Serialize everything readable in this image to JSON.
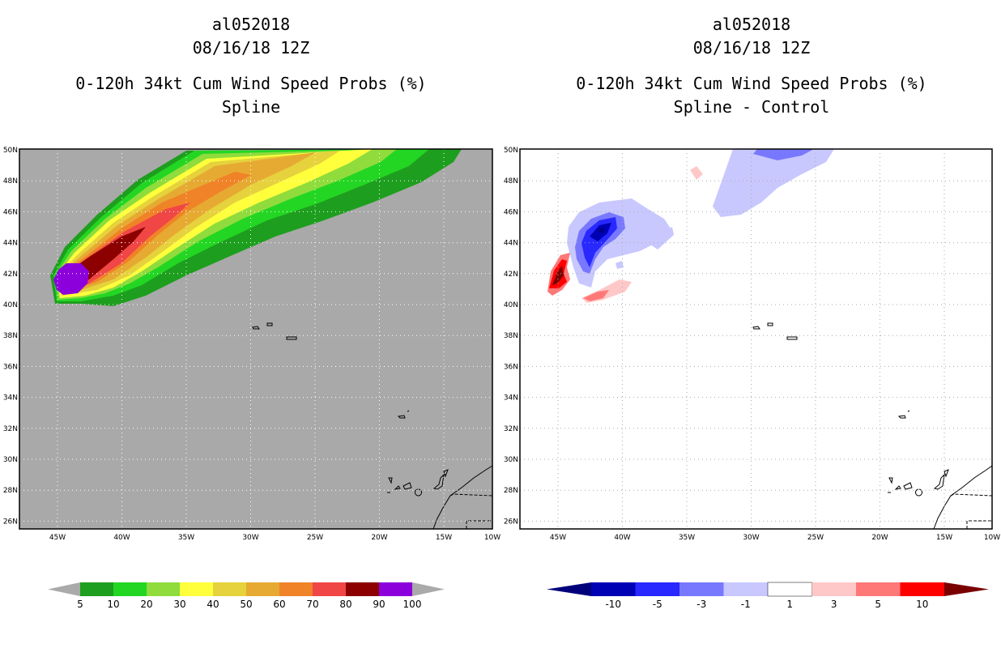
{
  "left_panel": {
    "title_lines": [
      "al052018",
      "08/16/18 12Z",
      "0-120h 34kt Cum Wind Speed Probs (%)",
      "Spline"
    ]
  },
  "right_panel": {
    "title_lines": [
      "al052018",
      "08/16/18 12Z",
      "0-120h 34kt Cum Wind Speed Probs (%)",
      "Spline - Control"
    ]
  },
  "axes": {
    "lat_labels": [
      "50N",
      "48N",
      "46N",
      "44N",
      "42N",
      "40N",
      "38N",
      "36N",
      "34N",
      "32N",
      "30N",
      "28N",
      "26N"
    ],
    "lon_labels": [
      "45W",
      "40W",
      "35W",
      "30W",
      "25W",
      "20W",
      "15W",
      "10W"
    ]
  },
  "left_colorbar": {
    "labels": [
      "5",
      "10",
      "20",
      "30",
      "40",
      "50",
      "60",
      "70",
      "80",
      "90",
      "100"
    ],
    "colors": [
      "#1e9e1e",
      "#23d623",
      "#8fdc3c",
      "#ffff3c",
      "#e6d23c",
      "#e6aa32",
      "#f08228",
      "#f04646",
      "#8c0000",
      "#8c00dc"
    ],
    "end_color": "#aaaaaa",
    "background_color": "#a9a9a9"
  },
  "right_colorbar": {
    "labels": [
      "-10",
      "-5",
      "-3",
      "-1",
      "1",
      "3",
      "5",
      "10"
    ],
    "colors": [
      "#0000b4",
      "#2828ff",
      "#7878ff",
      "#c8c8ff",
      "#ffffff",
      "#ffc8c8",
      "#ff7878",
      "#ff0000"
    ],
    "end_low": "#00007a",
    "end_high": "#7a0000"
  }
}
